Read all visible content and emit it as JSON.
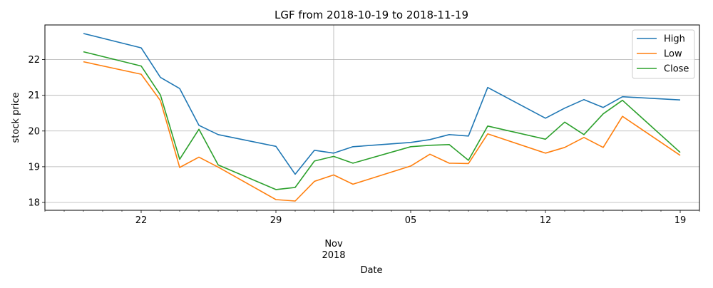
{
  "chart_data": {
    "type": "line",
    "title": "LGF from 2018-10-19 to 2018-11-19",
    "xlabel": "Date",
    "ylabel": "stock price",
    "x": [
      "2018-10-19",
      "2018-10-22",
      "2018-10-23",
      "2018-10-24",
      "2018-10-25",
      "2018-10-26",
      "2018-10-29",
      "2018-10-30",
      "2018-10-31",
      "2018-11-01",
      "2018-11-02",
      "2018-11-05",
      "2018-11-06",
      "2018-11-07",
      "2018-11-08",
      "2018-11-09",
      "2018-11-12",
      "2018-11-13",
      "2018-11-14",
      "2018-11-15",
      "2018-11-16",
      "2018-11-19"
    ],
    "series": [
      {
        "name": "High",
        "color": "#1f77b4",
        "values": [
          22.73,
          22.33,
          21.5,
          21.19,
          20.16,
          19.9,
          19.57,
          18.79,
          19.46,
          19.38,
          19.56,
          19.68,
          19.76,
          19.9,
          19.86,
          21.22,
          20.36,
          20.64,
          20.88,
          20.66,
          20.96,
          20.87
        ]
      },
      {
        "name": "Low",
        "color": "#ff7f0e",
        "values": [
          21.94,
          21.59,
          20.85,
          18.98,
          19.27,
          18.99,
          18.08,
          18.04,
          18.59,
          18.77,
          18.51,
          19.02,
          19.35,
          19.1,
          19.09,
          19.92,
          19.38,
          19.54,
          19.82,
          19.54,
          20.41,
          19.32
        ]
      },
      {
        "name": "Close",
        "color": "#2ca02c",
        "values": [
          22.22,
          21.82,
          21.01,
          19.21,
          20.05,
          19.05,
          18.36,
          18.42,
          19.16,
          19.29,
          19.1,
          19.56,
          19.6,
          19.62,
          19.18,
          20.14,
          19.77,
          20.25,
          19.9,
          20.48,
          20.86,
          19.4
        ]
      }
    ],
    "xlim": [
      "2018-10-17",
      "2018-11-20"
    ],
    "ylim": [
      17.78,
      22.97
    ],
    "y_ticks": [
      18,
      19,
      20,
      21,
      22
    ],
    "y_tick_labels": [
      "18",
      "19",
      "20",
      "21",
      "22"
    ],
    "x_major_ticks": [
      {
        "date": "2018-10-22",
        "label": "22"
      },
      {
        "date": "2018-10-29",
        "label": "29"
      },
      {
        "date": "2018-11-05",
        "label": "05"
      },
      {
        "date": "2018-11-12",
        "label": "12"
      },
      {
        "date": "2018-11-19",
        "label": "19"
      }
    ],
    "x_month_tick": {
      "date": "2018-11-01",
      "label_month": "Nov",
      "label_year": "2018"
    },
    "x_minor_ticks": [
      "2018-10-17",
      "2018-10-18",
      "2018-10-19",
      "2018-10-20",
      "2018-10-21",
      "2018-10-23",
      "2018-10-24",
      "2018-10-25",
      "2018-10-26",
      "2018-10-27",
      "2018-10-28",
      "2018-10-30",
      "2018-10-31",
      "2018-11-02",
      "2018-11-03",
      "2018-11-04",
      "2018-11-06",
      "2018-11-07",
      "2018-11-08",
      "2018-11-09",
      "2018-11-10",
      "2018-11-11",
      "2018-11-13",
      "2018-11-14",
      "2018-11-15",
      "2018-11-16",
      "2018-11-17",
      "2018-11-18",
      "2018-11-20"
    ],
    "grid": true,
    "legend": {
      "position": "top-right",
      "entries": [
        "High",
        "Low",
        "Close"
      ]
    }
  }
}
